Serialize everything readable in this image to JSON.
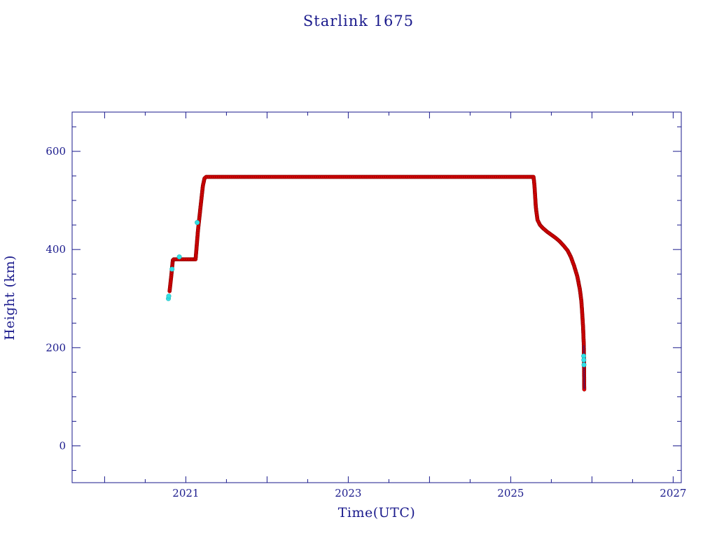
{
  "chart_data": {
    "type": "scatter",
    "title": "Starlink 1675",
    "xlabel": "Time(UTC)",
    "ylabel": "Height (km)",
    "xlim": [
      2019.6,
      2027.1
    ],
    "ylim": [
      -75,
      680
    ],
    "x_ticks": [
      2021,
      2023,
      2025,
      2027
    ],
    "y_ticks": [
      0,
      200,
      400,
      600
    ],
    "grid": false,
    "colors": {
      "axis": "#1a1a8c",
      "primary": "#e60000",
      "primary_outline": "#7a0000",
      "secondary": "#33e0e6"
    },
    "series": [
      {
        "points": [
          [
            2020.8,
            315
          ],
          [
            2020.81,
            330
          ],
          [
            2020.82,
            345
          ],
          [
            2020.83,
            362
          ],
          [
            2020.84,
            378
          ],
          [
            2020.85,
            380
          ],
          [
            2020.95,
            380
          ],
          [
            2021.05,
            380
          ],
          [
            2021.12,
            380
          ],
          [
            2021.13,
            400
          ],
          [
            2021.14,
            420
          ],
          [
            2021.15,
            440
          ],
          [
            2021.17,
            470
          ],
          [
            2021.19,
            500
          ],
          [
            2021.21,
            530
          ],
          [
            2021.23,
            545
          ],
          [
            2021.25,
            548
          ],
          [
            2021.5,
            548
          ],
          [
            2022.0,
            548
          ],
          [
            2022.5,
            548
          ],
          [
            2023.0,
            548
          ],
          [
            2023.5,
            548
          ],
          [
            2024.0,
            548
          ],
          [
            2024.5,
            548
          ],
          [
            2025.0,
            548
          ],
          [
            2025.28,
            548
          ],
          [
            2025.29,
            535
          ],
          [
            2025.3,
            510
          ],
          [
            2025.31,
            485
          ],
          [
            2025.33,
            460
          ],
          [
            2025.36,
            450
          ],
          [
            2025.4,
            443
          ],
          [
            2025.45,
            436
          ],
          [
            2025.5,
            430
          ],
          [
            2025.55,
            424
          ],
          [
            2025.6,
            417
          ],
          [
            2025.65,
            408
          ],
          [
            2025.7,
            398
          ],
          [
            2025.74,
            385
          ],
          [
            2025.78,
            367
          ],
          [
            2025.82,
            345
          ],
          [
            2025.85,
            320
          ],
          [
            2025.87,
            295
          ],
          [
            2025.88,
            270
          ],
          [
            2025.89,
            245
          ],
          [
            2025.895,
            225
          ],
          [
            2025.9,
            205
          ],
          [
            2025.903,
            160
          ],
          [
            2025.905,
            115
          ]
        ]
      },
      {
        "points": [
          [
            2020.785,
            300
          ],
          [
            2020.79,
            305
          ],
          [
            2020.83,
            360
          ],
          [
            2020.92,
            385
          ],
          [
            2021.14,
            455
          ],
          [
            2025.898,
            183
          ],
          [
            2025.9,
            175
          ],
          [
            2025.902,
            165
          ]
        ]
      }
    ]
  }
}
